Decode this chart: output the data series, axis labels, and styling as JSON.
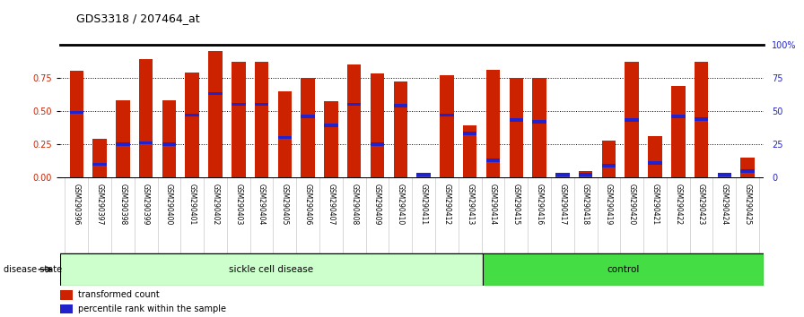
{
  "title": "GDS3318 / 207464_at",
  "samples": [
    "GSM290396",
    "GSM290397",
    "GSM290398",
    "GSM290399",
    "GSM290400",
    "GSM290401",
    "GSM290402",
    "GSM290403",
    "GSM290404",
    "GSM290405",
    "GSM290406",
    "GSM290407",
    "GSM290408",
    "GSM290409",
    "GSM290410",
    "GSM290411",
    "GSM290412",
    "GSM290413",
    "GSM290414",
    "GSM290415",
    "GSM290416",
    "GSM290417",
    "GSM290418",
    "GSM290419",
    "GSM290420",
    "GSM290421",
    "GSM290422",
    "GSM290423",
    "GSM290424",
    "GSM290425"
  ],
  "transformed_count": [
    0.8,
    0.29,
    0.58,
    0.89,
    0.58,
    0.79,
    0.95,
    0.87,
    0.87,
    0.65,
    0.75,
    0.57,
    0.85,
    0.78,
    0.72,
    0.01,
    0.77,
    0.39,
    0.81,
    0.75,
    0.75,
    0.02,
    0.05,
    0.28,
    0.87,
    0.31,
    0.69,
    0.87,
    0.01,
    0.15
  ],
  "percentile_rank": [
    0.49,
    0.1,
    0.25,
    0.26,
    0.25,
    0.47,
    0.63,
    0.55,
    0.55,
    0.3,
    0.46,
    0.39,
    0.55,
    0.25,
    0.54,
    0.02,
    0.47,
    0.33,
    0.13,
    0.43,
    0.42,
    0.02,
    0.02,
    0.09,
    0.43,
    0.11,
    0.46,
    0.44,
    0.02,
    0.05
  ],
  "sickle_count": 18,
  "control_count": 12,
  "bar_color": "#cc2200",
  "percentile_color": "#2222cc",
  "sickle_bg": "#ccffcc",
  "control_bg": "#44dd44",
  "xlabel_bg": "#cccccc",
  "ylim_left": [
    0,
    1.0
  ],
  "yticks_left": [
    0,
    0.25,
    0.5,
    0.75
  ],
  "yticks_right": [
    0,
    25,
    50,
    75,
    100
  ],
  "disease_state_label": "disease state",
  "sickle_label": "sickle cell disease",
  "control_label": "control",
  "legend_transformed": "transformed count",
  "legend_percentile": "percentile rank within the sample"
}
